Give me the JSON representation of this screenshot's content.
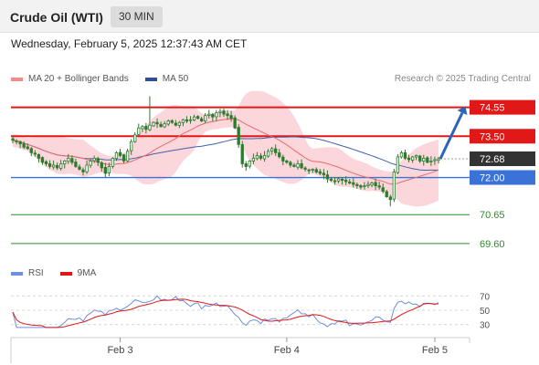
{
  "header": {
    "title": "Crude Oil (WTI)",
    "timeframe": "30 MIN"
  },
  "datetime": "Wednesday, February 5, 2025 12:37:43 AM CET",
  "copyright": "Research © 2025 Trading Central",
  "legend_main": [
    {
      "label": "MA 20 + Bollinger Bands",
      "color": "#f28b8b"
    },
    {
      "label": "MA 50",
      "color": "#2e4d9b"
    }
  ],
  "legend_rsi": [
    {
      "label": "RSI",
      "color": "#6f8fe0"
    },
    {
      "label": "9MA",
      "color": "#e01818"
    }
  ],
  "colors": {
    "resistance": "#e01818",
    "support_blue": "#3a72d8",
    "support_green": "#2e8b2e",
    "last_price_bg": "#333333",
    "candle": "#2f7a2f",
    "bollinger_fill": "#f9c9cf",
    "ma20": "#e86a6a",
    "ma50": "#4060b0",
    "projection_arrow": "#2b64b8"
  },
  "chart_data": [
    {
      "type": "candlestick",
      "title": "",
      "y_range": [
        69.1,
        75.2
      ],
      "x_ticks": [
        "Feb 3",
        "Feb 4",
        "Feb 5"
      ],
      "levels": [
        {
          "value": 74.55,
          "label": "74.55",
          "style": "resistance"
        },
        {
          "value": 73.5,
          "label": "73.50",
          "style": "resistance"
        },
        {
          "value": 72.68,
          "label": "72.68",
          "style": "last_price"
        },
        {
          "value": 72.0,
          "label": "72.00",
          "style": "support_blue"
        },
        {
          "value": 70.65,
          "label": "70.65",
          "style": "support_green"
        },
        {
          "value": 69.6,
          "label": "69.60",
          "style": "support_green"
        }
      ],
      "series": [
        {
          "name": "Crude Oil (WTI)",
          "close": [
            73.35,
            73.3,
            73.22,
            73.1,
            73.05,
            72.9,
            72.85,
            72.7,
            72.55,
            72.5,
            72.4,
            72.45,
            72.35,
            72.5,
            72.6,
            72.7,
            72.55,
            72.4,
            72.3,
            72.2,
            72.45,
            72.6,
            72.7,
            72.55,
            72.35,
            72.15,
            72.4,
            72.7,
            72.9,
            72.8,
            72.6,
            72.95,
            73.3,
            73.55,
            73.8,
            73.85,
            73.75,
            73.9,
            74.0,
            73.95,
            73.85,
            73.95,
            74.05,
            74.0,
            73.9,
            74.0,
            74.1,
            74.05,
            74.1,
            74.2,
            74.15,
            74.05,
            74.25,
            74.3,
            74.2,
            74.35,
            74.4,
            74.3,
            74.25,
            74.15,
            73.8,
            73.2,
            72.5,
            72.4,
            72.6,
            72.7,
            72.8,
            72.7,
            72.8,
            72.95,
            73.05,
            72.9,
            72.75,
            72.6,
            72.55,
            72.45,
            72.4,
            72.5,
            72.35,
            72.3,
            72.25,
            72.3,
            72.2,
            72.15,
            72.1,
            71.95,
            71.9,
            71.85,
            71.95,
            71.9,
            71.85,
            71.8,
            71.75,
            71.7,
            71.65,
            71.7,
            71.75,
            71.8,
            71.7,
            71.65,
            71.5,
            71.3,
            71.2,
            72.2,
            72.75,
            72.9,
            72.7,
            72.65,
            72.75,
            72.8,
            72.6,
            72.7,
            72.55,
            72.6,
            72.65,
            72.68
          ]
        },
        {
          "name": "MA 20"
        },
        {
          "name": "MA 50"
        }
      ],
      "projection": {
        "from": 72.68,
        "to": 74.55
      }
    },
    {
      "type": "line",
      "title": "",
      "y_range": [
        22,
        78
      ],
      "y_ticks": [
        70,
        50,
        30
      ],
      "series": [
        {
          "name": "RSI"
        },
        {
          "name": "9MA"
        }
      ]
    }
  ]
}
